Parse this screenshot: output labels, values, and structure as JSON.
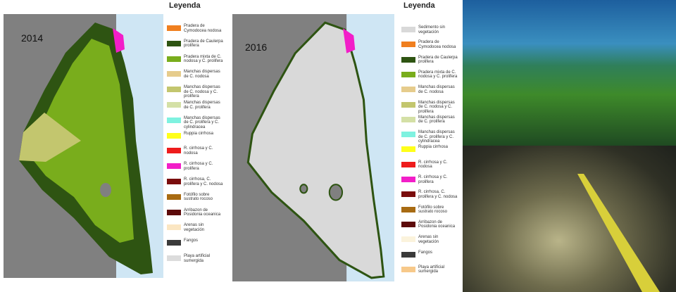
{
  "map_2014": {
    "year": "2014"
  },
  "map_2016": {
    "year": "2016"
  },
  "legend_2014": {
    "title": "Leyenda",
    "items": [
      {
        "label": "Pradera de Cymodocea nodosa",
        "color": "#f07f1f"
      },
      {
        "label": "Pradera de Caulerpa prolifera",
        "color": "#2e5412"
      },
      {
        "label": "Pradera mixta de C. nodosa y C. prolifera",
        "color": "#79ad1c"
      },
      {
        "label": "Manchas dispersas de C. nodosa",
        "color": "#e6cc8c"
      },
      {
        "label": "Manchas dispersas de C. nodosa y C. prolifera",
        "color": "#c3c66e"
      },
      {
        "label": "Manchas dispersas de C. prolifera",
        "color": "#d4e0a6"
      },
      {
        "label": "Manchas dispersas de C. prolifera y C. cylindracea",
        "color": "#7ff2e0"
      },
      {
        "label": "Ruppia cirrhosa",
        "color": "#ffff1a"
      },
      {
        "label": "R. cirrhosa y C. nodosa",
        "color": "#ee1c1c"
      },
      {
        "label": "R. cirrhosa y C. prolifera",
        "color": "#f21ec8"
      },
      {
        "label": "R. cirrhosa, C. prolifera y C. nodosa",
        "color": "#7a0d0d"
      },
      {
        "label": "Fotófilo sobre sustrato rocoso",
        "color": "#a86b12"
      },
      {
        "label": "Arribazon de Posidonia oceanica",
        "color": "#5c0a0a"
      },
      {
        "label": "Arenas sin vegetación",
        "color": "#fbe6c2"
      },
      {
        "label": "Fangos",
        "color": "#3a3a3a"
      },
      {
        "label": "Playa artificial sumergida",
        "color": "#dcdcdc"
      }
    ]
  },
  "legend_2016": {
    "title": "Leyenda",
    "items": [
      {
        "label": "Sedimento sin vegetación",
        "color": "#d9d9d9"
      },
      {
        "label": "Pradera de Cymodocea nodosa",
        "color": "#f07f1f"
      },
      {
        "label": "Pradera de Caulerpa prolifera",
        "color": "#2e5412"
      },
      {
        "label": "Pradera mixta de C. nodosa y C. prolifera",
        "color": "#79ad1c"
      },
      {
        "label": "Manchas dispersas de C. nodosa",
        "color": "#e6cc8c"
      },
      {
        "label": "Manchas dispersas de C. nodosa y C. prolifera",
        "color": "#c3c66e"
      },
      {
        "label": "Manchas dispersas de C. prolifera",
        "color": "#d4e0a6"
      },
      {
        "label": "Manchas dispersas de C. prolifera y C. cylindracea",
        "color": "#7ff2e0"
      },
      {
        "label": "Ruppia cirrhosa",
        "color": "#ffff1a"
      },
      {
        "label": "R. cirrhosa y C. nodosa",
        "color": "#ee1c1c"
      },
      {
        "label": "R. cirrhosa y C. prolifera",
        "color": "#f21ec8"
      },
      {
        "label": "R. cirrhosa, C. prolifera y C. nodosa",
        "color": "#7a0d0d"
      },
      {
        "label": "Fotófilo sobre sustrato rocoso",
        "color": "#a86b12"
      },
      {
        "label": "Arribazon de Posidonia oceanica",
        "color": "#5c0a0a"
      },
      {
        "label": "Arenas sin vegetación",
        "color": "#fbf3dc"
      },
      {
        "label": "Fangos",
        "color": "#3a3a3a"
      },
      {
        "label": "Playa artificial sumergida",
        "color": "#f7c98a"
      }
    ]
  }
}
